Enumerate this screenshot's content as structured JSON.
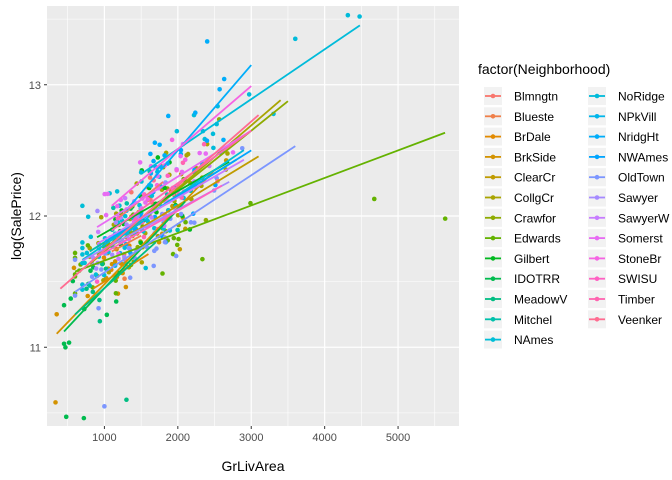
{
  "chart_data": {
    "type": "scatter",
    "xlabel": "GrLivArea",
    "ylabel": "log(SalePrice)",
    "legend_title": "factor(Neighborhood)",
    "legend_position": "right",
    "xlim": [
      218,
      5830
    ],
    "ylim": [
      10.4,
      13.6
    ],
    "x_ticks": [
      1000,
      2000,
      3000,
      4000,
      5000
    ],
    "y_ticks": [
      11,
      12,
      13
    ],
    "x_tick_labels": [
      "1000",
      "2000",
      "3000",
      "4000",
      "5000"
    ],
    "y_tick_labels": [
      "11",
      "12",
      "13"
    ],
    "grid": true,
    "background": "#EBEBEB",
    "series": [
      {
        "name": "Blmngtn",
        "color": "#F8766D",
        "x_range": [
          1200,
          1800
        ],
        "fit": {
          "intercept": 11.45,
          "slope": 0.00045
        },
        "cx": 1500,
        "cy": 12.2
      },
      {
        "name": "Blueste",
        "color": "#EF7F49",
        "x_range": [
          1100,
          1500
        ],
        "fit": {
          "intercept": 11.4,
          "slope": 0.0003
        },
        "cx": 1300,
        "cy": 11.85
      },
      {
        "name": "BrDale",
        "color": "#E28A00",
        "x_range": [
          850,
          1600
        ],
        "fit": {
          "intercept": 11.15,
          "slope": 0.00035
        },
        "cx": 1200,
        "cy": 11.6
      },
      {
        "name": "BrkSide",
        "color": "#D39200",
        "x_range": [
          350,
          2500
        ],
        "fit": {
          "intercept": 10.9,
          "slope": 0.00058
        },
        "cx": 1200,
        "cy": 11.55
      },
      {
        "name": "ClearCr",
        "color": "#C09B00",
        "x_range": [
          1000,
          3100
        ],
        "fit": {
          "intercept": 11.4,
          "slope": 0.00034
        },
        "cx": 1700,
        "cy": 12.05
      },
      {
        "name": "CollgCr",
        "color": "#A9A400",
        "x_range": [
          800,
          3400
        ],
        "fit": {
          "intercept": 11.25,
          "slope": 0.00048
        },
        "cx": 1600,
        "cy": 12.1
      },
      {
        "name": "Crawfor",
        "color": "#8EAB00",
        "x_range": [
          900,
          3500
        ],
        "fit": {
          "intercept": 11.3,
          "slope": 0.00045
        },
        "cx": 1700,
        "cy": 12.15
      },
      {
        "name": "Edwards",
        "color": "#64B200",
        "x_range": [
          600,
          5640
        ],
        "fit": {
          "intercept": 11.45,
          "slope": 0.00021
        },
        "cx": 1300,
        "cy": 11.7
      },
      {
        "name": "Gilbert",
        "color": "#00B81F",
        "x_range": [
          900,
          2700
        ],
        "fit": {
          "intercept": 11.55,
          "slope": 0.00032
        },
        "cx": 1600,
        "cy": 12.05
      },
      {
        "name": "IDOTRR",
        "color": "#00BB4E",
        "x_range": [
          450,
          2100
        ],
        "fit": {
          "intercept": 10.85,
          "slope": 0.0006
        },
        "cx": 1000,
        "cy": 11.4
      },
      {
        "name": "MeadowV",
        "color": "#00BD82",
        "x_range": [
          600,
          1700
        ],
        "fit": {
          "intercept": 10.95,
          "slope": 0.0005
        },
        "cx": 1050,
        "cy": 11.4
      },
      {
        "name": "Mitchel",
        "color": "#00C0AB",
        "x_range": [
          800,
          2800
        ],
        "fit": {
          "intercept": 11.45,
          "slope": 0.00035
        },
        "cx": 1400,
        "cy": 11.9
      },
      {
        "name": "NAmes",
        "color": "#00BED7",
        "x_range": [
          700,
          2900
        ],
        "fit": {
          "intercept": 11.4,
          "slope": 0.00038
        },
        "cx": 1300,
        "cy": 11.85
      },
      {
        "name": "NoRidge",
        "color": "#00BBDA",
        "x_range": [
          1500,
          4480
        ],
        "fit": {
          "intercept": 11.75,
          "slope": 0.00038
        },
        "cx": 2300,
        "cy": 12.6
      },
      {
        "name": "NPkVill",
        "color": "#00B6EB",
        "x_range": [
          1100,
          1600
        ],
        "fit": {
          "intercept": 11.35,
          "slope": 0.0004
        },
        "cx": 1300,
        "cy": 11.9
      },
      {
        "name": "NridgHt",
        "color": "#00ADFA",
        "x_range": [
          1300,
          3000
        ],
        "fit": {
          "intercept": 11.2,
          "slope": 0.00065
        },
        "cx": 1900,
        "cy": 12.5
      },
      {
        "name": "NWAmes",
        "color": "#00A5FF",
        "x_range": [
          1000,
          3000
        ],
        "fit": {
          "intercept": 11.45,
          "slope": 0.00035
        },
        "cx": 1800,
        "cy": 12.1
      },
      {
        "name": "OldTown",
        "color": "#7C96FF",
        "x_range": [
          600,
          3600
        ],
        "fit": {
          "intercept": 11.2,
          "slope": 0.00037
        },
        "cx": 1400,
        "cy": 11.65
      },
      {
        "name": "Sawyer",
        "color": "#A58AFF",
        "x_range": [
          700,
          2700
        ],
        "fit": {
          "intercept": 11.45,
          "slope": 0.0003
        },
        "cx": 1200,
        "cy": 11.8
      },
      {
        "name": "SawyerW",
        "color": "#C77CFF",
        "x_range": [
          900,
          2900
        ],
        "fit": {
          "intercept": 11.5,
          "slope": 0.00032
        },
        "cx": 1700,
        "cy": 12.05
      },
      {
        "name": "Somerst",
        "color": "#E76BF3",
        "x_range": [
          900,
          3000
        ],
        "fit": {
          "intercept": 11.6,
          "slope": 0.00035
        },
        "cx": 1700,
        "cy": 12.25
      },
      {
        "name": "StoneBr",
        "color": "#F564E3",
        "x_range": [
          1100,
          3000
        ],
        "fit": {
          "intercept": 11.55,
          "slope": 0.00048
        },
        "cx": 1900,
        "cy": 12.5
      },
      {
        "name": "SWISU",
        "color": "#FF61C3",
        "x_range": [
          900,
          2600
        ],
        "fit": {
          "intercept": 11.4,
          "slope": 0.00032
        },
        "cx": 1600,
        "cy": 11.9
      },
      {
        "name": "Timber",
        "color": "#FF64B0",
        "x_range": [
          1100,
          3000
        ],
        "fit": {
          "intercept": 11.45,
          "slope": 0.0004
        },
        "cx": 1800,
        "cy": 12.2
      },
      {
        "name": "Veenker",
        "color": "#FF6C91",
        "x_range": [
          400,
          3100
        ],
        "fit": {
          "intercept": 11.25,
          "slope": 0.00049
        },
        "cx": 1700,
        "cy": 12.1
      }
    ],
    "outlier_points": [
      {
        "x": 4316,
        "y": 13.53,
        "series": "NoRidge"
      },
      {
        "x": 4476,
        "y": 13.52,
        "series": "NoRidge"
      },
      {
        "x": 4676,
        "y": 12.13,
        "series": "Edwards"
      },
      {
        "x": 5642,
        "y": 11.98,
        "series": "Edwards"
      },
      {
        "x": 334,
        "y": 10.58,
        "series": "BrkSide"
      },
      {
        "x": 480,
        "y": 10.47,
        "series": "IDOTRR"
      },
      {
        "x": 720,
        "y": 10.46,
        "series": "IDOTRR"
      },
      {
        "x": 3600,
        "y": 13.35,
        "series": "NoRidge"
      },
      {
        "x": 2400,
        "y": 13.33,
        "series": "NridgHt"
      },
      {
        "x": 1000,
        "y": 10.55,
        "series": "OldTown"
      },
      {
        "x": 1300,
        "y": 10.6,
        "series": "MeadowV"
      }
    ]
  }
}
